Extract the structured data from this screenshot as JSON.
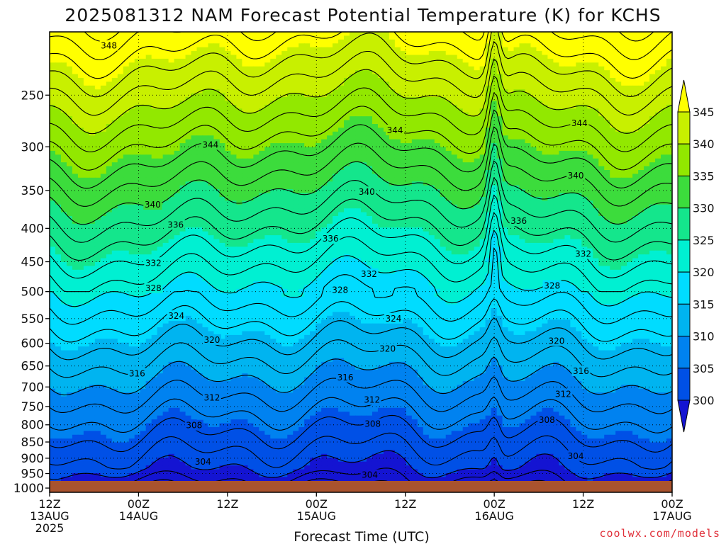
{
  "chart_data": {
    "type": "heatmap",
    "title": "2025081312 NAM Forecast Potential Temperature (K) for KCHS",
    "xlabel": "Forecast Time (UTC)",
    "ylabel": "",
    "x_ticks": [
      {
        "line1": "12Z",
        "line2": "13AUG",
        "line3": "2025"
      },
      {
        "line1": "00Z",
        "line2": "14AUG",
        "line3": ""
      },
      {
        "line1": "12Z",
        "line2": "",
        "line3": ""
      },
      {
        "line1": "00Z",
        "line2": "15AUG",
        "line3": ""
      },
      {
        "line1": "12Z",
        "line2": "",
        "line3": ""
      },
      {
        "line1": "00Z",
        "line2": "16AUG",
        "line3": ""
      },
      {
        "line1": "12Z",
        "line2": "",
        "line3": ""
      },
      {
        "line1": "00Z",
        "line2": "17AUG",
        "line3": ""
      }
    ],
    "x_range_hours": [
      0,
      84
    ],
    "y_ticks": [
      "250",
      "300",
      "350",
      "400",
      "450",
      "500",
      "550",
      "600",
      "650",
      "700",
      "750",
      "800",
      "850",
      "900",
      "950",
      "1000"
    ],
    "y_values": [
      250,
      300,
      350,
      400,
      450,
      500,
      550,
      600,
      650,
      700,
      750,
      800,
      850,
      900,
      950,
      1000
    ],
    "y_range": [
      200,
      1015
    ],
    "y_scale": "log",
    "grid": "dotted",
    "colorbar": {
      "ticks": [
        "345",
        "340",
        "335",
        "330",
        "325",
        "320",
        "315",
        "310",
        "305",
        "300"
      ],
      "bins": [
        {
          "min": 345,
          "color": "#ffff00"
        },
        {
          "min": 340,
          "color": "#c8f000"
        },
        {
          "min": 335,
          "color": "#92e800"
        },
        {
          "min": 330,
          "color": "#3cdc3c"
        },
        {
          "min": 325,
          "color": "#14e68c"
        },
        {
          "min": 320,
          "color": "#00f0d2"
        },
        {
          "min": 315,
          "color": "#00dcff"
        },
        {
          "min": 310,
          "color": "#00b4f0"
        },
        {
          "min": 305,
          "color": "#0082f0"
        },
        {
          "min": 300,
          "color": "#0050e6"
        },
        {
          "min": 0,
          "color": "#1414d2"
        }
      ]
    },
    "contour_labels": [
      {
        "text": "348",
        "x_hours": 8.0,
        "p": 210
      },
      {
        "text": "344",
        "x_hours": 46.6,
        "p": 283
      },
      {
        "text": "344",
        "x_hours": 21.7,
        "p": 298
      },
      {
        "text": "344",
        "x_hours": 71.5,
        "p": 276
      },
      {
        "text": "340",
        "x_hours": 42.8,
        "p": 352
      },
      {
        "text": "340",
        "x_hours": 13.9,
        "p": 368
      },
      {
        "text": "340",
        "x_hours": 71.0,
        "p": 332
      },
      {
        "text": "336",
        "x_hours": 17.0,
        "p": 395
      },
      {
        "text": "336",
        "x_hours": 37.9,
        "p": 415
      },
      {
        "text": "336",
        "x_hours": 63.3,
        "p": 390
      },
      {
        "text": "332",
        "x_hours": 14.0,
        "p": 452
      },
      {
        "text": "332",
        "x_hours": 43.1,
        "p": 470
      },
      {
        "text": "332",
        "x_hours": 72.0,
        "p": 438
      },
      {
        "text": "328",
        "x_hours": 14.0,
        "p": 494
      },
      {
        "text": "328",
        "x_hours": 39.2,
        "p": 497
      },
      {
        "text": "328",
        "x_hours": 67.8,
        "p": 490
      },
      {
        "text": "324",
        "x_hours": 17.1,
        "p": 545
      },
      {
        "text": "324",
        "x_hours": 46.4,
        "p": 550
      },
      {
        "text": "320",
        "x_hours": 21.9,
        "p": 593
      },
      {
        "text": "320",
        "x_hours": 45.6,
        "p": 612
      },
      {
        "text": "320",
        "x_hours": 68.4,
        "p": 595
      },
      {
        "text": "316",
        "x_hours": 11.8,
        "p": 668
      },
      {
        "text": "316",
        "x_hours": 39.9,
        "p": 677
      },
      {
        "text": "316",
        "x_hours": 71.7,
        "p": 662
      },
      {
        "text": "312",
        "x_hours": 21.9,
        "p": 727
      },
      {
        "text": "312",
        "x_hours": 43.5,
        "p": 733
      },
      {
        "text": "312",
        "x_hours": 69.3,
        "p": 718
      },
      {
        "text": "308",
        "x_hours": 19.5,
        "p": 802
      },
      {
        "text": "308",
        "x_hours": 43.6,
        "p": 798
      },
      {
        "text": "308",
        "x_hours": 67.1,
        "p": 787
      },
      {
        "text": "304",
        "x_hours": 20.7,
        "p": 912
      },
      {
        "text": "304",
        "x_hours": 43.2,
        "p": 955
      },
      {
        "text": "304",
        "x_hours": 71.0,
        "p": 893
      }
    ]
  },
  "credit": "coolwx.com/models",
  "colors": {
    "ground": "#a9532e",
    "contour": "#000000",
    "frame": "#000000"
  }
}
